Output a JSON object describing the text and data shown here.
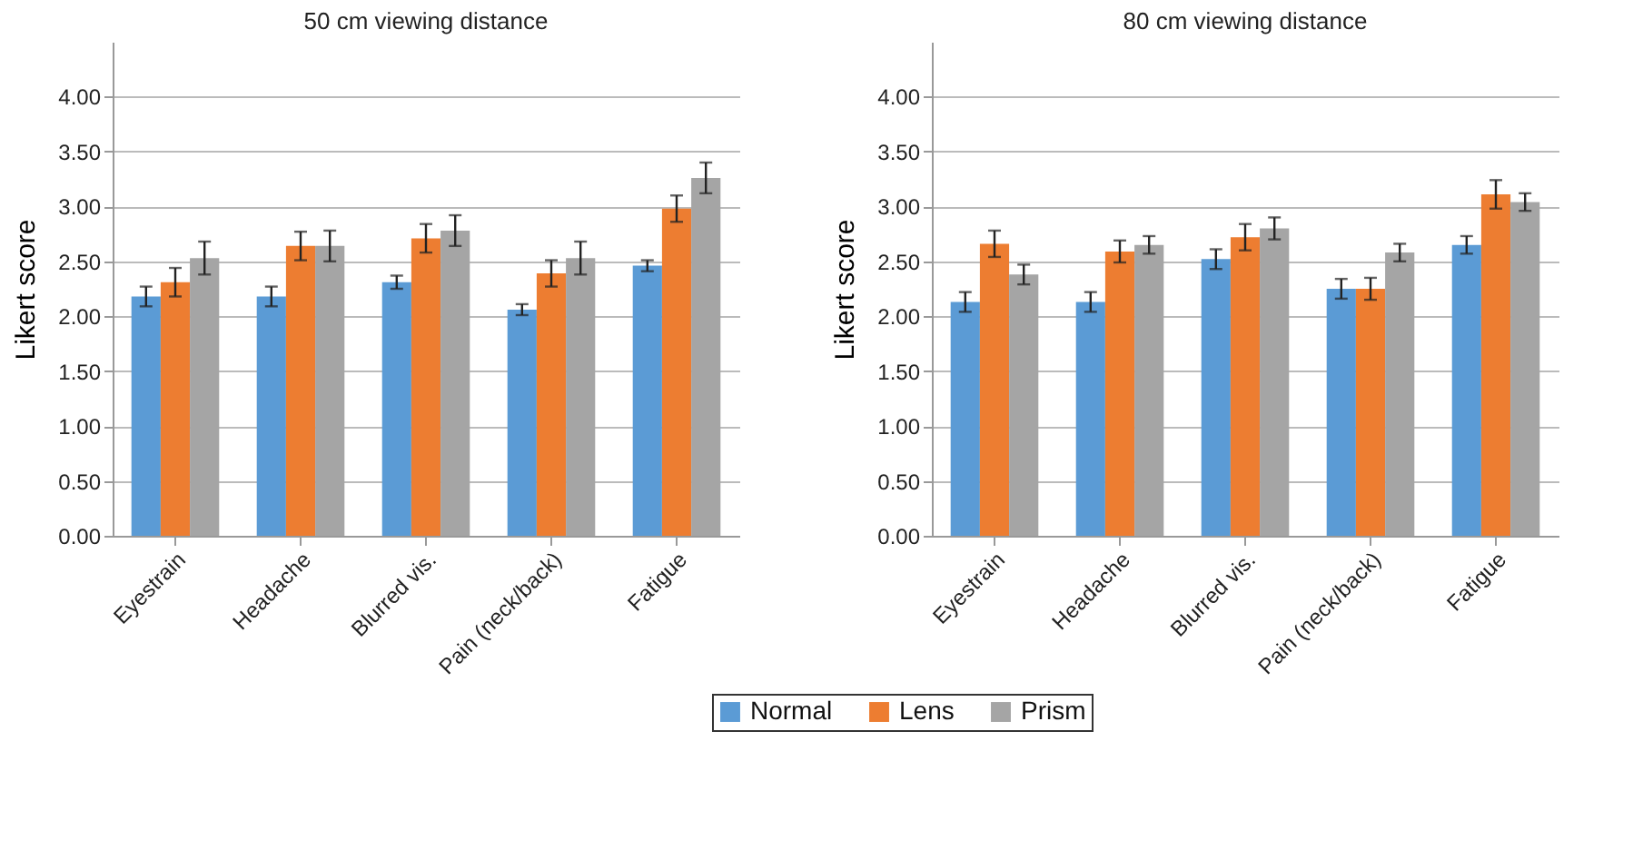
{
  "chart_data": [
    {
      "type": "bar",
      "title": "50 cm viewing distance",
      "ylabel": "Likert score",
      "categories": [
        "Eyestrain",
        "Headache",
        "Blurred vis.",
        "Pain (neck/back)",
        "Fatigue"
      ],
      "series": [
        {
          "name": "Normal",
          "color": "#5b9bd5",
          "values": [
            2.18,
            2.18,
            2.31,
            2.06,
            2.46
          ],
          "errors": [
            0.09,
            0.09,
            0.06,
            0.05,
            0.05
          ]
        },
        {
          "name": "Lens",
          "color": "#ed7d31",
          "values": [
            2.31,
            2.64,
            2.71,
            2.39,
            2.98
          ],
          "errors": [
            0.13,
            0.13,
            0.13,
            0.12,
            0.12
          ]
        },
        {
          "name": "Prism",
          "color": "#a5a5a5",
          "values": [
            2.53,
            2.64,
            2.78,
            2.53,
            3.26
          ],
          "errors": [
            0.15,
            0.14,
            0.14,
            0.15,
            0.14
          ]
        }
      ],
      "ylim": [
        0,
        4.5
      ],
      "yticks": [
        {
          "value": 0,
          "label": "0.00"
        },
        {
          "value": 0.5,
          "label": "0.50"
        },
        {
          "value": 1,
          "label": "1.00"
        },
        {
          "value": 1.5,
          "label": "1.50"
        },
        {
          "value": 2,
          "label": "2.00"
        },
        {
          "value": 2.5,
          "label": "2.50"
        },
        {
          "value": 3,
          "label": "3.00"
        },
        {
          "value": 3.5,
          "label": "3.50"
        },
        {
          "value": 4,
          "label": "4.00"
        }
      ],
      "grid": "y",
      "legend": "bottom"
    },
    {
      "type": "bar",
      "title": "80 cm viewing distance",
      "ylabel": "Likert score",
      "categories": [
        "Eyestrain",
        "Headache",
        "Blurred vis.",
        "Pain (neck/back)",
        "Fatigue"
      ],
      "series": [
        {
          "name": "Normal",
          "color": "#5b9bd5",
          "values": [
            2.13,
            2.13,
            2.52,
            2.25,
            2.65
          ],
          "errors": [
            0.09,
            0.09,
            0.09,
            0.09,
            0.08
          ]
        },
        {
          "name": "Lens",
          "color": "#ed7d31",
          "values": [
            2.66,
            2.59,
            2.72,
            2.25,
            3.11
          ],
          "errors": [
            0.12,
            0.1,
            0.12,
            0.1,
            0.13
          ]
        },
        {
          "name": "Prism",
          "color": "#a5a5a5",
          "values": [
            2.38,
            2.65,
            2.8,
            2.58,
            3.04
          ],
          "errors": [
            0.09,
            0.08,
            0.1,
            0.08,
            0.08
          ]
        }
      ],
      "ylim": [
        0,
        4.5
      ],
      "yticks": [
        {
          "value": 0,
          "label": "0.00"
        },
        {
          "value": 0.5,
          "label": "0.50"
        },
        {
          "value": 1,
          "label": "1.00"
        },
        {
          "value": 1.5,
          "label": "1.50"
        },
        {
          "value": 2,
          "label": "2.00"
        },
        {
          "value": 2.5,
          "label": "2.50"
        },
        {
          "value": 3,
          "label": "3.00"
        },
        {
          "value": 3.5,
          "label": "3.50"
        },
        {
          "value": 4,
          "label": "4.00"
        }
      ],
      "grid": "y",
      "legend": "bottom"
    }
  ]
}
